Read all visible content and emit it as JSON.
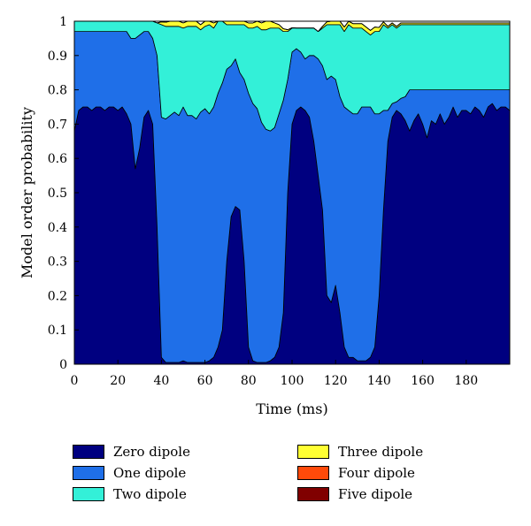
{
  "chart_data": {
    "type": "area",
    "stacked": true,
    "xlabel": "Time (ms)",
    "ylabel": "Model order probability",
    "xlim": [
      0,
      200
    ],
    "ylim": [
      0,
      1
    ],
    "x_ticks": [
      0,
      20,
      40,
      60,
      80,
      100,
      120,
      140,
      160,
      180
    ],
    "y_ticks": [
      0,
      0.1,
      0.2,
      0.3,
      0.4,
      0.5,
      0.6,
      0.7,
      0.8,
      0.9,
      1
    ],
    "x_tick_labels": [
      "0",
      "20",
      "40",
      "60",
      "80",
      "100",
      "120",
      "140",
      "160",
      "180"
    ],
    "y_tick_labels": [
      "0",
      "0.1",
      "0.2",
      "0.3",
      "0.4",
      "0.5",
      "0.6",
      "0.7",
      "0.8",
      "0.9",
      "1"
    ],
    "grid": false,
    "legend_position": "bottom",
    "x": [
      0,
      2,
      4,
      6,
      8,
      10,
      12,
      14,
      16,
      18,
      20,
      22,
      24,
      26,
      28,
      30,
      32,
      34,
      36,
      38,
      40,
      42,
      44,
      46,
      48,
      50,
      52,
      54,
      56,
      58,
      60,
      62,
      64,
      66,
      68,
      70,
      72,
      74,
      76,
      78,
      80,
      82,
      84,
      86,
      88,
      90,
      92,
      94,
      96,
      98,
      100,
      102,
      104,
      106,
      108,
      110,
      112,
      114,
      116,
      118,
      120,
      122,
      124,
      126,
      128,
      130,
      132,
      134,
      136,
      138,
      140,
      142,
      144,
      146,
      148,
      150,
      152,
      154,
      156,
      158,
      160,
      162,
      164,
      166,
      168,
      170,
      172,
      174,
      176,
      178,
      180,
      182,
      184,
      186,
      188,
      190,
      192,
      194,
      196,
      198,
      200
    ],
    "series": [
      {
        "name": "Zero dipole",
        "color": "#000080",
        "values": [
          0.68,
          0.74,
          0.75,
          0.75,
          0.74,
          0.75,
          0.75,
          0.74,
          0.75,
          0.75,
          0.74,
          0.75,
          0.73,
          0.7,
          0.57,
          0.63,
          0.72,
          0.74,
          0.7,
          0.4,
          0.02,
          0.005,
          0.005,
          0.005,
          0.005,
          0.01,
          0.005,
          0.005,
          0.005,
          0.005,
          0.005,
          0.01,
          0.02,
          0.05,
          0.1,
          0.3,
          0.43,
          0.46,
          0.45,
          0.3,
          0.05,
          0.01,
          0.005,
          0.005,
          0.005,
          0.01,
          0.02,
          0.05,
          0.15,
          0.5,
          0.7,
          0.74,
          0.75,
          0.74,
          0.72,
          0.65,
          0.55,
          0.45,
          0.2,
          0.18,
          0.23,
          0.15,
          0.05,
          0.02,
          0.02,
          0.01,
          0.01,
          0.01,
          0.02,
          0.05,
          0.2,
          0.45,
          0.65,
          0.72,
          0.74,
          0.73,
          0.71,
          0.68,
          0.71,
          0.73,
          0.7,
          0.66,
          0.71,
          0.7,
          0.73,
          0.7,
          0.72,
          0.75,
          0.72,
          0.74,
          0.74,
          0.73,
          0.75,
          0.74,
          0.72,
          0.75,
          0.76,
          0.74,
          0.75,
          0.75,
          0.74
        ]
      },
      {
        "name": "One dipole",
        "color": "#1f6fe8",
        "values": [
          0.29,
          0.23,
          0.22,
          0.22,
          0.23,
          0.22,
          0.22,
          0.23,
          0.22,
          0.22,
          0.23,
          0.22,
          0.24,
          0.25,
          0.38,
          0.33,
          0.25,
          0.23,
          0.25,
          0.5,
          0.7,
          0.71,
          0.72,
          0.73,
          0.72,
          0.74,
          0.72,
          0.72,
          0.71,
          0.73,
          0.74,
          0.72,
          0.73,
          0.74,
          0.72,
          0.56,
          0.44,
          0.43,
          0.4,
          0.53,
          0.74,
          0.75,
          0.74,
          0.7,
          0.68,
          0.67,
          0.67,
          0.68,
          0.62,
          0.33,
          0.21,
          0.18,
          0.16,
          0.15,
          0.18,
          0.25,
          0.34,
          0.42,
          0.63,
          0.66,
          0.6,
          0.63,
          0.7,
          0.72,
          0.71,
          0.72,
          0.74,
          0.74,
          0.73,
          0.68,
          0.53,
          0.29,
          0.09,
          0.04,
          0.025,
          0.045,
          0.07,
          0.12,
          0.09,
          0.07,
          0.1,
          0.14,
          0.09,
          0.1,
          0.07,
          0.1,
          0.08,
          0.05,
          0.08,
          0.06,
          0.06,
          0.07,
          0.05,
          0.06,
          0.08,
          0.05,
          0.04,
          0.06,
          0.05,
          0.05,
          0.06
        ]
      },
      {
        "name": "Two dipole",
        "color": "#33f0d8",
        "values": [
          0.03,
          0.03,
          0.03,
          0.03,
          0.03,
          0.03,
          0.03,
          0.03,
          0.03,
          0.03,
          0.03,
          0.03,
          0.03,
          0.05,
          0.05,
          0.04,
          0.03,
          0.03,
          0.05,
          0.095,
          0.27,
          0.27,
          0.26,
          0.25,
          0.26,
          0.23,
          0.26,
          0.26,
          0.27,
          0.24,
          0.24,
          0.26,
          0.23,
          0.21,
          0.18,
          0.13,
          0.12,
          0.1,
          0.14,
          0.16,
          0.19,
          0.22,
          0.24,
          0.27,
          0.29,
          0.3,
          0.29,
          0.25,
          0.2,
          0.14,
          0.07,
          0.06,
          0.07,
          0.09,
          0.08,
          0.08,
          0.08,
          0.11,
          0.16,
          0.15,
          0.16,
          0.21,
          0.22,
          0.25,
          0.25,
          0.25,
          0.23,
          0.22,
          0.21,
          0.24,
          0.24,
          0.25,
          0.24,
          0.23,
          0.215,
          0.215,
          0.21,
          0.19,
          0.19,
          0.19,
          0.19,
          0.19,
          0.19,
          0.19,
          0.19,
          0.19,
          0.19,
          0.19,
          0.19,
          0.19,
          0.19,
          0.19,
          0.19,
          0.19,
          0.19,
          0.19,
          0.19,
          0.19,
          0.19,
          0.19,
          0.19
        ]
      },
      {
        "name": "Three dipole",
        "color": "#ffff33",
        "values": [
          0,
          0,
          0,
          0,
          0,
          0,
          0,
          0,
          0,
          0,
          0,
          0,
          0,
          0,
          0,
          0,
          0,
          0,
          0,
          0,
          0.008,
          0.012,
          0.015,
          0.015,
          0.015,
          0.015,
          0.015,
          0.015,
          0.015,
          0.015,
          0.015,
          0.015,
          0.015,
          0.015,
          0.015,
          0.015,
          0.015,
          0.015,
          0.015,
          0.015,
          0.015,
          0.015,
          0.015,
          0.02,
          0.025,
          0.02,
          0.015,
          0.01,
          0.008,
          0.005,
          0.001,
          0,
          0,
          0,
          0,
          0,
          0,
          0.005,
          0.008,
          0.01,
          0.012,
          0.013,
          0.013,
          0.013,
          0.013,
          0.013,
          0.013,
          0.013,
          0.013,
          0.013,
          0.012,
          0.008,
          0.005,
          0.005,
          0.005,
          0.005,
          0.005,
          0.005,
          0.005,
          0.005,
          0.005,
          0.005,
          0.005,
          0.005,
          0.005,
          0.005,
          0.005,
          0.005,
          0.005,
          0.005,
          0.005,
          0.005,
          0.005,
          0.005,
          0.005,
          0.005,
          0.005,
          0.005,
          0.005,
          0.005,
          0.005
        ]
      },
      {
        "name": "Four dipole",
        "color": "#ff4a0a",
        "values": [
          0,
          0,
          0,
          0,
          0,
          0,
          0,
          0,
          0,
          0,
          0,
          0,
          0,
          0,
          0,
          0,
          0,
          0,
          0,
          0,
          0,
          0,
          0,
          0,
          0,
          0,
          0,
          0,
          0,
          0,
          0,
          0,
          0,
          0,
          0,
          0,
          0,
          0,
          0,
          0,
          0,
          0,
          0,
          0,
          0,
          0,
          0,
          0,
          0,
          0,
          0,
          0,
          0,
          0,
          0,
          0,
          0,
          0,
          0,
          0,
          0,
          0,
          0,
          0,
          0,
          0,
          0,
          0,
          0,
          0,
          0,
          0,
          0,
          0,
          0,
          0,
          0,
          0,
          0,
          0,
          0,
          0,
          0,
          0,
          0,
          0,
          0,
          0,
          0,
          0,
          0,
          0,
          0,
          0,
          0,
          0,
          0,
          0,
          0,
          0,
          0
        ]
      },
      {
        "name": "Five dipole",
        "color": "#800000",
        "values": [
          0,
          0,
          0,
          0,
          0,
          0,
          0,
          0,
          0,
          0,
          0,
          0,
          0,
          0,
          0,
          0,
          0,
          0,
          0,
          0,
          0,
          0,
          0,
          0,
          0,
          0,
          0,
          0,
          0,
          0,
          0,
          0,
          0,
          0,
          0,
          0,
          0,
          0,
          0,
          0,
          0,
          0,
          0,
          0,
          0,
          0,
          0,
          0,
          0,
          0,
          0,
          0,
          0,
          0,
          0,
          0,
          0,
          0,
          0,
          0,
          0,
          0,
          0,
          0,
          0,
          0,
          0,
          0,
          0,
          0,
          0,
          0,
          0,
          0,
          0,
          0,
          0,
          0,
          0,
          0,
          0,
          0,
          0,
          0,
          0,
          0,
          0,
          0,
          0,
          0,
          0,
          0,
          0,
          0,
          0,
          0,
          0,
          0,
          0,
          0,
          0
        ]
      }
    ]
  }
}
